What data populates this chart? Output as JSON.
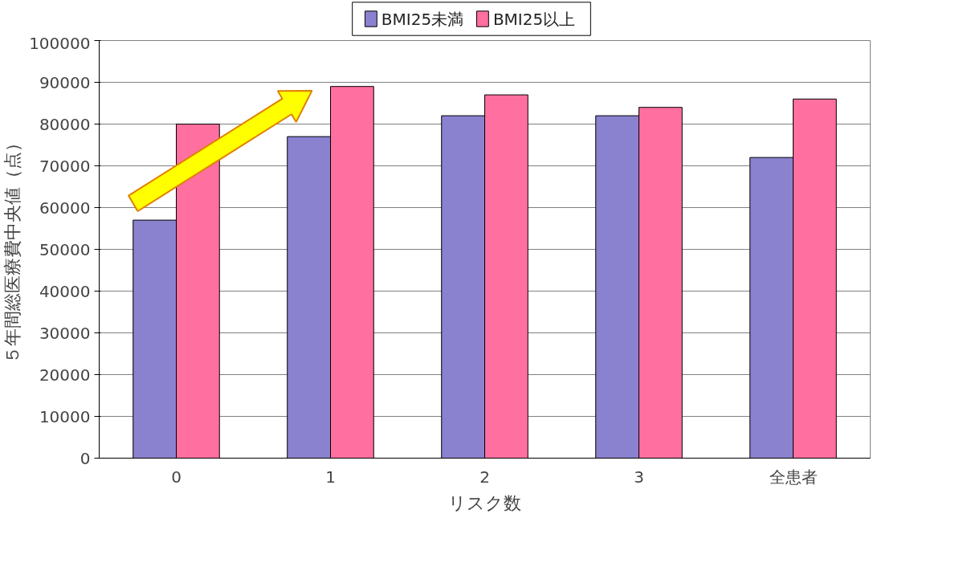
{
  "chart_data": {
    "type": "bar",
    "ylabel": "５年間総医療費中央値（点）",
    "xlabel": "リスク数",
    "categories": [
      "0",
      "1",
      "2",
      "3",
      "全患者"
    ],
    "series": [
      {
        "name": "BMI25未満",
        "color": "#8a82cf",
        "values": [
          57000,
          77000,
          82000,
          82000,
          72000
        ]
      },
      {
        "name": "BMI25以上",
        "color": "#ff6fa0",
        "values": [
          80000,
          89000,
          87000,
          84000,
          86000
        ]
      }
    ],
    "ylim": [
      0,
      100000
    ],
    "yticks": [
      0,
      10000,
      20000,
      30000,
      40000,
      50000,
      60000,
      70000,
      80000,
      90000,
      100000
    ],
    "grid": "y",
    "legend": "top"
  }
}
